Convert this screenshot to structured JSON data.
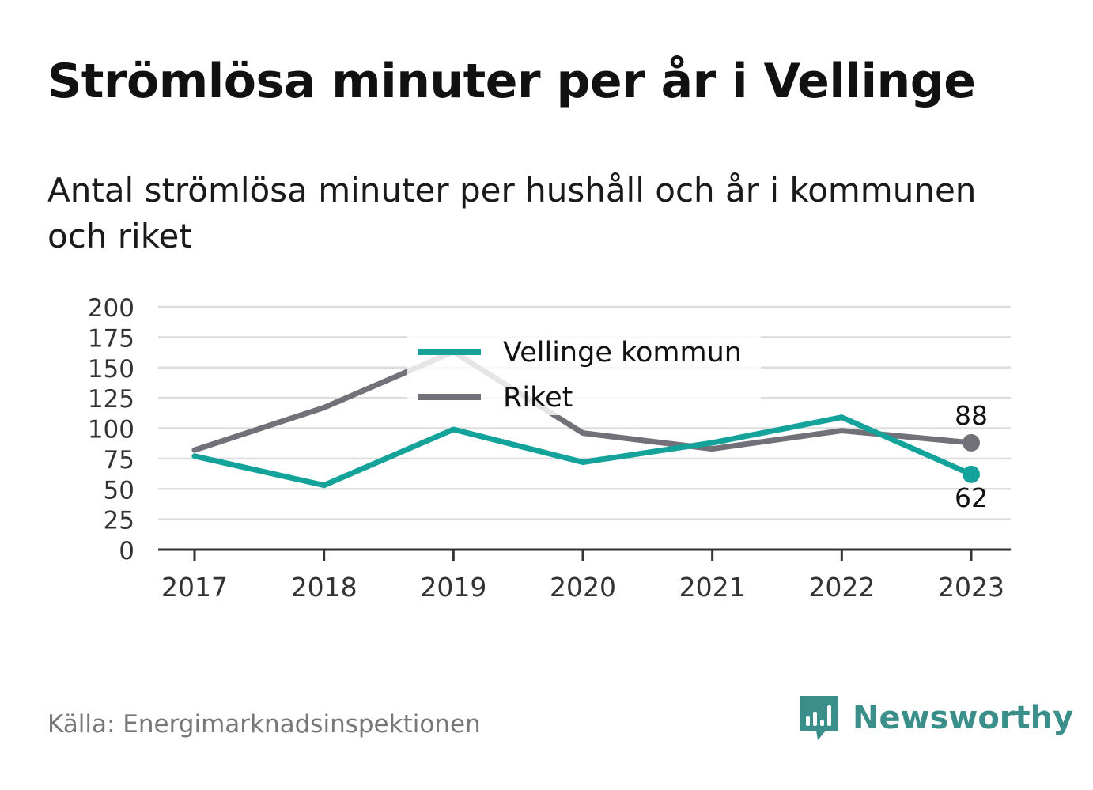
{
  "header": {
    "title": "Strömlösa minuter per år i Vellinge",
    "subtitle": "Antal strömlösa minuter per hushåll och år i kommunen och riket"
  },
  "footer": {
    "source": "Källa: Energimarknadsinspektionen",
    "brand": "Newsworthy",
    "brand_icon": "bar-chart-speech-bubble-icon"
  },
  "colors": {
    "vellinge": "#13a39a",
    "riket": "#727179",
    "grid": "#dddddd",
    "axis": "#333333",
    "brand": "#3a8f8a"
  },
  "chart_data": {
    "type": "line",
    "categories": [
      "2017",
      "2018",
      "2019",
      "2020",
      "2021",
      "2022",
      "2023"
    ],
    "ylim": [
      0,
      200
    ],
    "yticks": [
      "0",
      "25",
      "50",
      "75",
      "100",
      "125",
      "150",
      "175",
      "200"
    ],
    "grid": true,
    "legend_position": "top-center",
    "series": [
      {
        "name": "Vellinge kommun",
        "values": [
          77,
          53,
          99,
          72,
          88,
          109,
          62
        ],
        "end_label": "62"
      },
      {
        "name": "Riket",
        "values": [
          82,
          117,
          163,
          96,
          83,
          98,
          88
        ],
        "end_label": "88"
      }
    ]
  }
}
